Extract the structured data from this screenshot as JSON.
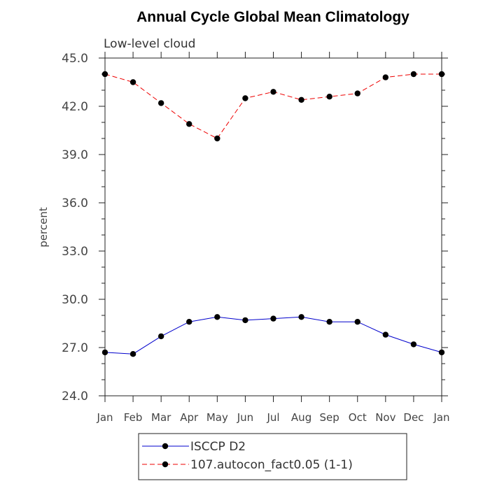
{
  "chart_data": {
    "type": "line",
    "title": "Annual Cycle Global Mean Climatology",
    "subtitle": "Low-level cloud",
    "xlabel": "",
    "ylabel": "percent",
    "categories": [
      "Jan",
      "Feb",
      "Mar",
      "Apr",
      "May",
      "Jun",
      "Jul",
      "Aug",
      "Sep",
      "Oct",
      "Nov",
      "Dec",
      "Jan"
    ],
    "ylim": [
      24.0,
      45.0
    ],
    "yticks": [
      24.0,
      27.0,
      30.0,
      33.0,
      36.0,
      39.0,
      42.0,
      45.0
    ],
    "ytick_labels": [
      "24.0",
      "27.0",
      "30.0",
      "33.0",
      "36.0",
      "39.0",
      "42.0",
      "45.0"
    ],
    "grid": false,
    "legend_position": "bottom",
    "series": [
      {
        "name": "ISCCP D2",
        "color": "#0000cc",
        "line_style": "solid",
        "marker": "filled-circle",
        "values": [
          26.7,
          26.6,
          27.7,
          28.6,
          28.9,
          28.7,
          28.8,
          28.9,
          28.6,
          28.6,
          27.8,
          27.2,
          26.7
        ]
      },
      {
        "name": "107.autocon_fact0.05 (1-1)",
        "color": "#ee0000",
        "line_style": "dashed",
        "marker": "filled-circle",
        "values": [
          44.0,
          43.5,
          42.2,
          40.9,
          40.0,
          42.5,
          42.9,
          42.4,
          42.6,
          42.8,
          43.8,
          44.0,
          44.0
        ]
      }
    ]
  }
}
